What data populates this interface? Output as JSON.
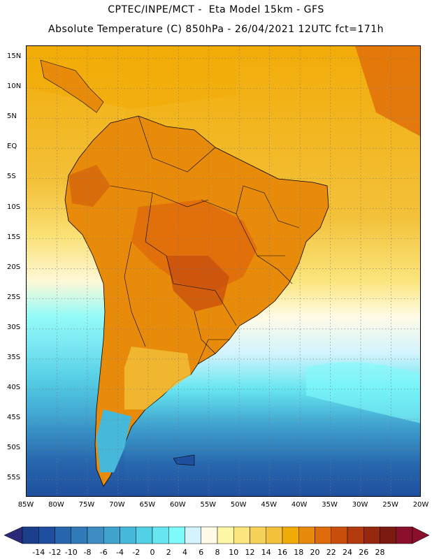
{
  "header": {
    "line1": "CPTEC/INPE/MCT -  Eta Model 15km - GFS",
    "line2": "Absolute Temperature (C) 850hPa - 26/04/2021 12UTC fct=171h"
  },
  "latitude_labels": [
    "15N",
    "10N",
    "5N",
    "EQ",
    "5S",
    "10S",
    "15S",
    "20S",
    "25S",
    "30S",
    "35S",
    "40S",
    "45S",
    "50S",
    "55S"
  ],
  "longitude_labels": [
    "85W",
    "80W",
    "75W",
    "70W",
    "65W",
    "60W",
    "55W",
    "50W",
    "45W",
    "40W",
    "35W",
    "30W",
    "25W",
    "20W"
  ],
  "colorbar": {
    "labels": [
      "-14",
      "-12",
      "-10",
      "-8",
      "-6",
      "-4",
      "-2",
      "0",
      "2",
      "4",
      "6",
      "8",
      "10",
      "12",
      "14",
      "16",
      "18",
      "20",
      "22",
      "24",
      "26",
      "28"
    ],
    "colors": [
      "#1a3f8c",
      "#1e4f9e",
      "#2766ad",
      "#3279b8",
      "#3d8dc3",
      "#3fa2cf",
      "#46b9da",
      "#52d0e6",
      "#66e6f0",
      "#80fbfb",
      "#d3f3fd",
      "#fffbe6",
      "#fdf7a6",
      "#fbe57c",
      "#f7d25a",
      "#f3c13a",
      "#f2ac08",
      "#e88b0a",
      "#e06b0a",
      "#c9500c",
      "#b23a0c",
      "#96280e",
      "#7b1a10",
      "#8a0f2c"
    ],
    "under_color": "#2a2a7a",
    "over_color": "#8a0f2c"
  },
  "map": {
    "lon_range": [
      -85,
      -20
    ],
    "lat_range": [
      -58,
      17
    ],
    "grid_lons": [
      -85,
      -80,
      -75,
      -70,
      -65,
      -60,
      -55,
      -50,
      -45,
      -40,
      -35,
      -30,
      -25,
      -20
    ],
    "grid_lats": [
      15,
      10,
      5,
      0,
      -5,
      -10,
      -15,
      -20,
      -25,
      -30,
      -35,
      -40,
      -45,
      -50,
      -55
    ],
    "ocean_bands_north": "#f2ac08",
    "ocean_bands_south": "#46b9da",
    "land_color": "#e88b0a"
  }
}
